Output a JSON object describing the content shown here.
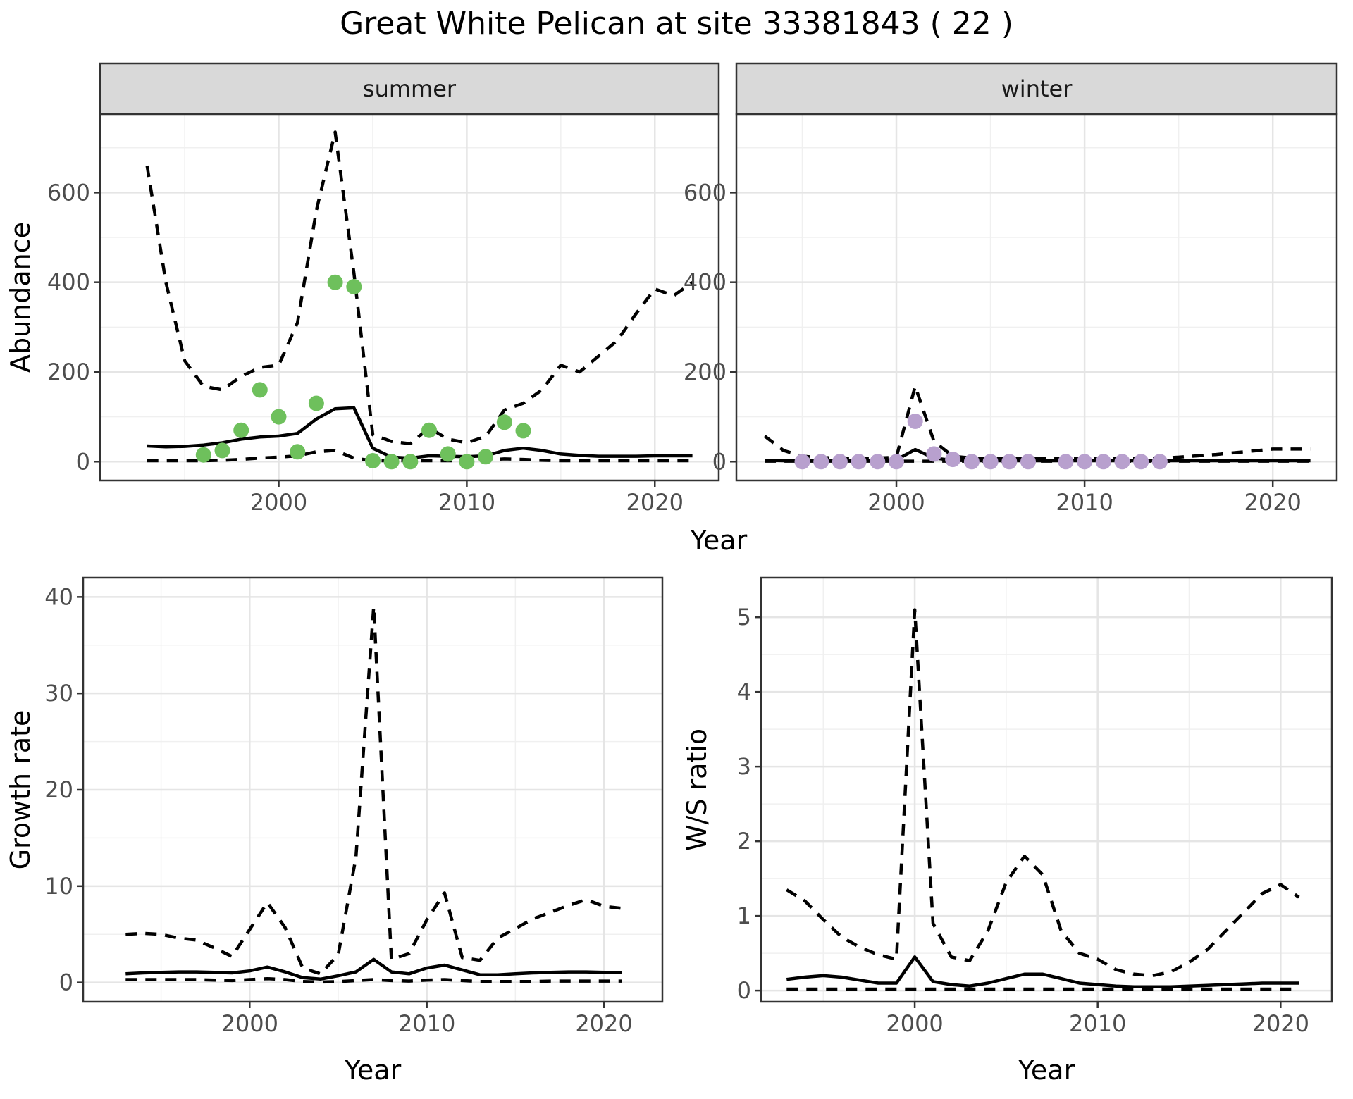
{
  "title": "Great White Pelican at site 33381843 ( 22 )",
  "axes": {
    "abundance_ylabel": "Abundance",
    "growth_ylabel": "Growth rate",
    "ws_ylabel": "W/S ratio",
    "top_xlabel": "Year",
    "bottom_left_xlabel": "Year",
    "bottom_right_xlabel": "Year"
  },
  "facets": {
    "summer": "summer",
    "winter": "winter"
  },
  "colors": {
    "summer_point": "#6ec05c",
    "winter_point": "#b8a0ce",
    "line": "#000000",
    "strip_bg": "#d9d9d9",
    "strip_border": "#333333",
    "panel_border": "#333333",
    "grid_major": "#e5e5e5",
    "grid_minor": "#f0f0f0",
    "tick_mark": "#333333",
    "tick_text": "#4d4d4d"
  },
  "chart_data": [
    {
      "id": "abundance-summer",
      "type": "line",
      "facet": "summer",
      "title": "Abundance - summer facet",
      "xlabel": "Year",
      "ylabel": "Abundance",
      "xlim": [
        1990.5,
        2023.4
      ],
      "ylim": [
        -42,
        775
      ],
      "x_ticks": [
        2000,
        2010,
        2020
      ],
      "x_minor": [
        1995,
        2005,
        2015
      ],
      "y_ticks": [
        0,
        200,
        400,
        600
      ],
      "y_minor": [
        100,
        300,
        500,
        700
      ],
      "years": [
        1993,
        1994,
        1995,
        1996,
        1997,
        1998,
        1999,
        2000,
        2001,
        2002,
        2003,
        2004,
        2005,
        2006,
        2007,
        2008,
        2009,
        2010,
        2011,
        2012,
        2013,
        2014,
        2015,
        2016,
        2017,
        2018,
        2019,
        2020,
        2021,
        2022
      ],
      "series": [
        {
          "name": "median",
          "style": "solid",
          "values": [
            35,
            33,
            34,
            37,
            42,
            50,
            55,
            57,
            63,
            95,
            118,
            120,
            30,
            10,
            8,
            13,
            12,
            11,
            13,
            25,
            30,
            25,
            17,
            14,
            12,
            12,
            12,
            13,
            13,
            13
          ]
        },
        {
          "name": "upper_ci",
          "style": "dashed",
          "values": [
            660,
            400,
            225,
            168,
            160,
            190,
            210,
            215,
            310,
            560,
            735,
            420,
            60,
            45,
            40,
            75,
            50,
            42,
            56,
            115,
            130,
            160,
            215,
            200,
            235,
            270,
            330,
            385,
            370,
            400
          ]
        },
        {
          "name": "lower_ci",
          "style": "dashed",
          "values": [
            2,
            2,
            2,
            2,
            3,
            5,
            8,
            10,
            13,
            22,
            25,
            8,
            2,
            2,
            2,
            2,
            2,
            2,
            4,
            6,
            5,
            3,
            2,
            2,
            2,
            2,
            2,
            2,
            2,
            2
          ]
        }
      ],
      "points": {
        "color_key": "summer_point",
        "years": [
          1996,
          1997,
          1998,
          1999,
          2000,
          2001,
          2002,
          2003,
          2004,
          2005,
          2006,
          2007,
          2008,
          2009,
          2010,
          2011,
          2012,
          2013
        ],
        "values": [
          15,
          25,
          70,
          160,
          100,
          22,
          130,
          400,
          390,
          2,
          0,
          0,
          70,
          17,
          0,
          11,
          88,
          69
        ]
      }
    },
    {
      "id": "abundance-winter",
      "type": "line",
      "facet": "winter",
      "title": "Abundance - winter facet",
      "xlabel": "Year",
      "ylabel": "Abundance",
      "xlim": [
        1991.5,
        2023.4
      ],
      "ylim": [
        -42,
        775
      ],
      "x_ticks": [
        2000,
        2010,
        2020
      ],
      "x_minor": [
        1995,
        2005,
        2015
      ],
      "y_ticks": [
        0,
        200,
        400,
        600
      ],
      "y_minor": [
        100,
        300,
        500,
        700
      ],
      "years": [
        1993,
        1994,
        1995,
        1996,
        1997,
        1998,
        1999,
        2000,
        2001,
        2002,
        2003,
        2004,
        2005,
        2006,
        2007,
        2008,
        2009,
        2010,
        2011,
        2012,
        2013,
        2014,
        2015,
        2016,
        2017,
        2018,
        2019,
        2020,
        2021,
        2022
      ],
      "series": [
        {
          "name": "median",
          "style": "solid",
          "values": [
            3,
            2,
            2,
            2,
            2,
            2,
            2,
            4,
            27,
            8,
            3,
            2,
            2,
            2,
            2,
            2,
            2,
            2,
            2,
            2,
            2,
            2,
            2,
            2,
            2,
            2,
            2,
            2,
            2,
            2
          ]
        },
        {
          "name": "upper_ci",
          "style": "dashed",
          "values": [
            57,
            25,
            12,
            9,
            8,
            8,
            8,
            10,
            168,
            45,
            12,
            8,
            7,
            7,
            8,
            8,
            7,
            7,
            7,
            7,
            8,
            8,
            10,
            13,
            16,
            20,
            24,
            28,
            28,
            28
          ]
        },
        {
          "name": "lower_ci",
          "style": "dashed",
          "values": [
            1,
            1,
            1,
            1,
            1,
            1,
            1,
            1,
            1,
            1,
            1,
            1,
            1,
            1,
            1,
            1,
            1,
            1,
            1,
            1,
            1,
            1,
            1,
            1,
            1,
            1,
            1,
            1,
            1,
            1
          ]
        }
      ],
      "points": {
        "color_key": "winter_point",
        "years": [
          1995,
          1996,
          1997,
          1998,
          1999,
          2000,
          2001,
          2002,
          2003,
          2004,
          2005,
          2006,
          2007,
          2009,
          2010,
          2011,
          2012,
          2013,
          2014
        ],
        "values": [
          0,
          0,
          0,
          0,
          0,
          0,
          90,
          17,
          5,
          0,
          0,
          0,
          0,
          0,
          0,
          0,
          0,
          0,
          0
        ]
      }
    },
    {
      "id": "growth-rate",
      "type": "line",
      "facet": null,
      "title": "Growth rate",
      "xlabel": "Year",
      "ylabel": "Growth rate",
      "xlim": [
        1990.6,
        2023.3
      ],
      "ylim": [
        -2,
        42
      ],
      "x_ticks": [
        2000,
        2010,
        2020
      ],
      "x_minor": [
        1995,
        2005,
        2015
      ],
      "y_ticks": [
        0,
        10,
        20,
        30,
        40
      ],
      "y_minor": [
        5,
        15,
        25,
        35
      ],
      "years": [
        1993,
        1994,
        1995,
        1996,
        1997,
        1998,
        1999,
        2000,
        2001,
        2002,
        2003,
        2004,
        2005,
        2006,
        2007,
        2008,
        2009,
        2010,
        2011,
        2012,
        2013,
        2014,
        2015,
        2016,
        2017,
        2018,
        2019,
        2020,
        2021
      ],
      "series": [
        {
          "name": "median",
          "style": "solid",
          "values": [
            0.9,
            1.0,
            1.05,
            1.1,
            1.1,
            1.05,
            1.0,
            1.2,
            1.6,
            1.1,
            0.5,
            0.35,
            0.7,
            1.1,
            2.4,
            1.1,
            0.9,
            1.5,
            1.8,
            1.3,
            0.8,
            0.8,
            0.9,
            1.0,
            1.05,
            1.1,
            1.1,
            1.05,
            1.05
          ]
        },
        {
          "name": "upper_ci",
          "style": "dashed",
          "values": [
            5.0,
            5.1,
            5.0,
            4.6,
            4.4,
            3.6,
            2.7,
            5.5,
            8.3,
            5.7,
            1.5,
            0.9,
            2.9,
            13,
            39,
            2.4,
            3.0,
            6.5,
            9.3,
            2.6,
            2.3,
            4.6,
            5.6,
            6.6,
            7.3,
            8.0,
            8.6,
            7.9,
            7.7
          ]
        },
        {
          "name": "lower_ci",
          "style": "dashed",
          "values": [
            0.3,
            0.3,
            0.3,
            0.3,
            0.3,
            0.25,
            0.2,
            0.3,
            0.4,
            0.3,
            0.1,
            0.05,
            0.1,
            0.2,
            0.3,
            0.2,
            0.15,
            0.25,
            0.3,
            0.2,
            0.1,
            0.1,
            0.1,
            0.1,
            0.15,
            0.15,
            0.15,
            0.15,
            0.15
          ]
        }
      ],
      "points": null
    },
    {
      "id": "ws-ratio",
      "type": "line",
      "facet": null,
      "title": "W/S ratio",
      "xlabel": "Year",
      "ylabel": "W/S ratio",
      "xlim": [
        1991.6,
        2022.8
      ],
      "ylim": [
        -0.15,
        5.53
      ],
      "x_ticks": [
        2000,
        2010,
        2020
      ],
      "x_minor": [
        1995,
        2005,
        2015
      ],
      "y_ticks": [
        0,
        1,
        2,
        3,
        4,
        5
      ],
      "y_minor": [
        0.5,
        1.5,
        2.5,
        3.5,
        4.5
      ],
      "years": [
        1993,
        1994,
        1995,
        1996,
        1997,
        1998,
        1999,
        2000,
        2001,
        2002,
        2003,
        2004,
        2005,
        2006,
        2007,
        2008,
        2009,
        2010,
        2011,
        2012,
        2013,
        2014,
        2015,
        2016,
        2017,
        2018,
        2019,
        2020,
        2021
      ],
      "series": [
        {
          "name": "median",
          "style": "solid",
          "values": [
            0.15,
            0.18,
            0.2,
            0.18,
            0.14,
            0.1,
            0.1,
            0.45,
            0.12,
            0.08,
            0.06,
            0.1,
            0.16,
            0.22,
            0.22,
            0.16,
            0.1,
            0.08,
            0.06,
            0.05,
            0.05,
            0.05,
            0.06,
            0.07,
            0.08,
            0.09,
            0.1,
            0.1,
            0.1
          ]
        },
        {
          "name": "upper_ci",
          "style": "dashed",
          "values": [
            1.35,
            1.2,
            0.95,
            0.72,
            0.58,
            0.48,
            0.42,
            5.1,
            0.9,
            0.45,
            0.4,
            0.8,
            1.45,
            1.8,
            1.55,
            0.8,
            0.5,
            0.42,
            0.28,
            0.22,
            0.2,
            0.25,
            0.38,
            0.55,
            0.8,
            1.05,
            1.3,
            1.42,
            1.25
          ]
        },
        {
          "name": "lower_ci",
          "style": "dashed",
          "values": [
            0.02,
            0.02,
            0.02,
            0.02,
            0.02,
            0.02,
            0.02,
            0.02,
            0.02,
            0.02,
            0.02,
            0.02,
            0.02,
            0.02,
            0.02,
            0.02,
            0.02,
            0.02,
            0.02,
            0.02,
            0.02,
            0.02,
            0.02,
            0.02,
            0.02,
            0.02,
            0.02,
            0.02,
            0.02
          ]
        }
      ],
      "points": null
    }
  ]
}
